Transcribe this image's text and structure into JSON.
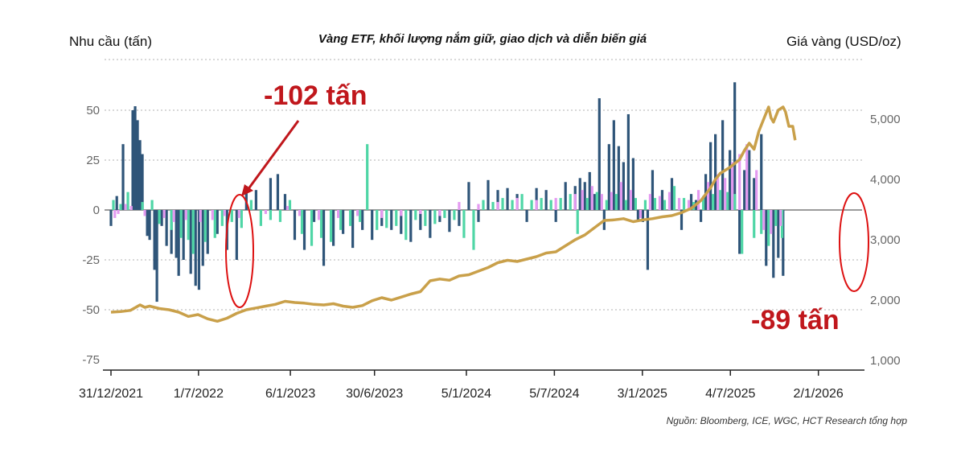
{
  "title": "Vàng ETF, khối lượng nắm giữ, giao dịch và diễn biến giá",
  "left_axis_label": "Nhu cầu (tấn)",
  "right_axis_label": "Giá vàng (USD/oz)",
  "source": "Nguồn: Bloomberg, ICE, WGC, HCT Research tổng hợp",
  "annotations": [
    {
      "text": "-102 tấn",
      "color": "#c0171c"
    },
    {
      "text": "-89 tấn",
      "color": "#c0171c"
    }
  ],
  "colors": {
    "series_dark": "#2f5579",
    "series_green": "#4fd6a6",
    "series_pink": "#e39af0",
    "price_line": "#c9a04a",
    "annotation": "#c0171c",
    "grid": "#cccccc"
  },
  "chart_data": {
    "type": "bar",
    "title": "Vàng ETF, khối lượng nắm giữ, giao dịch và diễn biến giá",
    "ylabel_left": "Nhu cầu (tấn)",
    "ylabel_right": "Giá vàng (USD/oz)",
    "ylim_left": [
      -75,
      62
    ],
    "ylim_right": [
      1000,
      5400
    ],
    "yticks_left": [
      "50",
      "25",
      "0",
      "-25",
      "-50",
      "-75"
    ],
    "yticks_right": [
      "5,000",
      "4,000",
      "3,000",
      "2,000",
      "1,000"
    ],
    "x_tick_labels": [
      "31/12/2021",
      "1/7/2022",
      "6/1/2023",
      "30/6/2023",
      "5/1/2024",
      "5/7/2024",
      "3/1/2025",
      "4/7/2025",
      "2/1/2026"
    ],
    "x_range_days": [
      0,
      1550
    ],
    "grid": "horizontal dotted",
    "legend": "none",
    "series": [
      {
        "kind": "bar",
        "color": "dark",
        "points": [
          [
            0,
            -8
          ],
          [
            12,
            7
          ],
          [
            25,
            33
          ],
          [
            45,
            50
          ],
          [
            50,
            52
          ],
          [
            55,
            45
          ],
          [
            60,
            35
          ],
          [
            65,
            28
          ],
          [
            75,
            -13
          ],
          [
            80,
            -15
          ],
          [
            90,
            -30
          ],
          [
            95,
            -46
          ],
          [
            105,
            -8
          ],
          [
            115,
            -18
          ],
          [
            125,
            -22
          ],
          [
            135,
            -24
          ],
          [
            140,
            -33
          ],
          [
            150,
            -25
          ],
          [
            165,
            -32
          ],
          [
            175,
            -38
          ],
          [
            182,
            -40
          ],
          [
            190,
            -28
          ],
          [
            200,
            -22
          ],
          [
            220,
            -12
          ],
          [
            240,
            -20
          ],
          [
            260,
            -25
          ],
          [
            280,
            12
          ],
          [
            300,
            10
          ],
          [
            330,
            16
          ],
          [
            345,
            18
          ],
          [
            360,
            8
          ],
          [
            380,
            -15
          ],
          [
            400,
            -20
          ],
          [
            420,
            -6
          ],
          [
            440,
            -28
          ],
          [
            460,
            -18
          ],
          [
            480,
            -12
          ],
          [
            500,
            -19
          ],
          [
            520,
            -10
          ],
          [
            540,
            -15
          ],
          [
            560,
            -8
          ],
          [
            580,
            -10
          ],
          [
            600,
            -12
          ],
          [
            620,
            -16
          ],
          [
            640,
            -10
          ],
          [
            660,
            -14
          ],
          [
            680,
            -6
          ],
          [
            700,
            -11
          ],
          [
            720,
            -8
          ],
          [
            740,
            14
          ],
          [
            760,
            -6
          ],
          [
            780,
            15
          ],
          [
            800,
            10
          ],
          [
            820,
            11
          ],
          [
            840,
            8
          ],
          [
            860,
            -6
          ],
          [
            880,
            11
          ],
          [
            900,
            10
          ],
          [
            920,
            -6
          ],
          [
            940,
            14
          ],
          [
            960,
            12
          ],
          [
            970,
            16
          ],
          [
            980,
            14
          ],
          [
            990,
            19
          ],
          [
            1000,
            8
          ],
          [
            1010,
            56
          ],
          [
            1020,
            -10
          ],
          [
            1030,
            33
          ],
          [
            1040,
            45
          ],
          [
            1050,
            32
          ],
          [
            1060,
            24
          ],
          [
            1070,
            48
          ],
          [
            1080,
            26
          ],
          [
            1090,
            -5
          ],
          [
            1100,
            -6
          ],
          [
            1110,
            -30
          ],
          [
            1120,
            20
          ],
          [
            1140,
            10
          ],
          [
            1160,
            16
          ],
          [
            1180,
            -10
          ],
          [
            1200,
            8
          ],
          [
            1210,
            5
          ],
          [
            1220,
            -6
          ],
          [
            1230,
            18
          ],
          [
            1240,
            34
          ],
          [
            1250,
            38
          ],
          [
            1265,
            45
          ],
          [
            1280,
            30
          ],
          [
            1290,
            64
          ],
          [
            1300,
            -22
          ],
          [
            1310,
            20
          ],
          [
            1320,
            30
          ],
          [
            1330,
            16
          ],
          [
            1345,
            38
          ],
          [
            1355,
            -28
          ],
          [
            1370,
            -34
          ],
          [
            1380,
            -24
          ],
          [
            1390,
            -33
          ]
        ]
      },
      {
        "kind": "bar",
        "color": "green",
        "points": [
          [
            5,
            5
          ],
          [
            20,
            3
          ],
          [
            35,
            9
          ],
          [
            65,
            4
          ],
          [
            85,
            5
          ],
          [
            100,
            -7
          ],
          [
            125,
            -10
          ],
          [
            145,
            -14
          ],
          [
            160,
            -15
          ],
          [
            170,
            -22
          ],
          [
            195,
            -16
          ],
          [
            215,
            -14
          ],
          [
            230,
            -8
          ],
          [
            250,
            -6
          ],
          [
            270,
            -9
          ],
          [
            290,
            5
          ],
          [
            310,
            -8
          ],
          [
            330,
            -5
          ],
          [
            350,
            -6
          ],
          [
            370,
            5
          ],
          [
            395,
            -12
          ],
          [
            415,
            -18
          ],
          [
            435,
            -14
          ],
          [
            455,
            -16
          ],
          [
            475,
            -10
          ],
          [
            495,
            -8
          ],
          [
            515,
            -6
          ],
          [
            530,
            33
          ],
          [
            550,
            -10
          ],
          [
            570,
            -9
          ],
          [
            590,
            -8
          ],
          [
            610,
            -15
          ],
          [
            630,
            -5
          ],
          [
            650,
            -8
          ],
          [
            670,
            -7
          ],
          [
            690,
            -4
          ],
          [
            710,
            -5
          ],
          [
            730,
            -14
          ],
          [
            750,
            -20
          ],
          [
            770,
            5
          ],
          [
            790,
            4
          ],
          [
            810,
            6
          ],
          [
            830,
            5
          ],
          [
            850,
            8
          ],
          [
            870,
            5
          ],
          [
            890,
            6
          ],
          [
            910,
            5
          ],
          [
            930,
            6
          ],
          [
            950,
            8
          ],
          [
            965,
            -12
          ],
          [
            985,
            6
          ],
          [
            1005,
            9
          ],
          [
            1025,
            5
          ],
          [
            1045,
            8
          ],
          [
            1065,
            5
          ],
          [
            1085,
            6
          ],
          [
            1105,
            5
          ],
          [
            1125,
            6
          ],
          [
            1145,
            5
          ],
          [
            1165,
            12
          ],
          [
            1185,
            6
          ],
          [
            1205,
            4
          ],
          [
            1225,
            7
          ],
          [
            1245,
            8
          ],
          [
            1260,
            10
          ],
          [
            1275,
            9
          ],
          [
            1290,
            8
          ],
          [
            1305,
            -22
          ],
          [
            1330,
            -14
          ],
          [
            1345,
            -12
          ],
          [
            1360,
            -18
          ],
          [
            1375,
            -8
          ],
          [
            1388,
            -14
          ]
        ]
      },
      {
        "kind": "bar",
        "color": "pink",
        "points": [
          [
            8,
            -4
          ],
          [
            15,
            -2
          ],
          [
            30,
            3
          ],
          [
            42,
            2
          ],
          [
            70,
            -3
          ],
          [
            110,
            -4
          ],
          [
            130,
            -6
          ],
          [
            155,
            -5
          ],
          [
            185,
            -6
          ],
          [
            210,
            -5
          ],
          [
            235,
            -3
          ],
          [
            265,
            -4
          ],
          [
            320,
            -2
          ],
          [
            365,
            2
          ],
          [
            390,
            -3
          ],
          [
            430,
            -5
          ],
          [
            470,
            -4
          ],
          [
            510,
            -3
          ],
          [
            560,
            -4
          ],
          [
            600,
            -3
          ],
          [
            640,
            -2
          ],
          [
            680,
            -3
          ],
          [
            720,
            4
          ],
          [
            760,
            3
          ],
          [
            800,
            4
          ],
          [
            840,
            6
          ],
          [
            880,
            5
          ],
          [
            920,
            6
          ],
          [
            960,
            8
          ],
          [
            975,
            10
          ],
          [
            995,
            12
          ],
          [
            1015,
            8
          ],
          [
            1035,
            9
          ],
          [
            1055,
            14
          ],
          [
            1075,
            10
          ],
          [
            1095,
            -4
          ],
          [
            1115,
            8
          ],
          [
            1135,
            7
          ],
          [
            1155,
            9
          ],
          [
            1175,
            6
          ],
          [
            1195,
            5
          ],
          [
            1215,
            10
          ],
          [
            1235,
            14
          ],
          [
            1255,
            18
          ],
          [
            1270,
            16
          ],
          [
            1285,
            24
          ],
          [
            1300,
            28
          ],
          [
            1315,
            33
          ],
          [
            1335,
            20
          ],
          [
            1350,
            -10
          ],
          [
            1365,
            -12
          ],
          [
            1385,
            -8
          ]
        ]
      },
      {
        "kind": "line",
        "name": "Giá vàng (USD/oz)",
        "axis": "right",
        "points": [
          [
            0,
            1800
          ],
          [
            20,
            1810
          ],
          [
            40,
            1830
          ],
          [
            60,
            1920
          ],
          [
            70,
            1880
          ],
          [
            80,
            1900
          ],
          [
            100,
            1860
          ],
          [
            120,
            1840
          ],
          [
            140,
            1800
          ],
          [
            160,
            1730
          ],
          [
            180,
            1760
          ],
          [
            200,
            1690
          ],
          [
            220,
            1650
          ],
          [
            240,
            1700
          ],
          [
            260,
            1780
          ],
          [
            280,
            1840
          ],
          [
            300,
            1870
          ],
          [
            320,
            1900
          ],
          [
            340,
            1930
          ],
          [
            360,
            1980
          ],
          [
            380,
            1960
          ],
          [
            400,
            1950
          ],
          [
            420,
            1930
          ],
          [
            440,
            1920
          ],
          [
            460,
            1940
          ],
          [
            480,
            1900
          ],
          [
            500,
            1880
          ],
          [
            520,
            1910
          ],
          [
            540,
            1990
          ],
          [
            560,
            2040
          ],
          [
            580,
            2000
          ],
          [
            600,
            2050
          ],
          [
            620,
            2100
          ],
          [
            640,
            2140
          ],
          [
            660,
            2320
          ],
          [
            680,
            2350
          ],
          [
            700,
            2330
          ],
          [
            720,
            2400
          ],
          [
            740,
            2420
          ],
          [
            760,
            2480
          ],
          [
            780,
            2540
          ],
          [
            800,
            2620
          ],
          [
            820,
            2660
          ],
          [
            840,
            2640
          ],
          [
            860,
            2680
          ],
          [
            880,
            2720
          ],
          [
            900,
            2780
          ],
          [
            920,
            2800
          ],
          [
            940,
            2900
          ],
          [
            960,
            3000
          ],
          [
            980,
            3080
          ],
          [
            1000,
            3200
          ],
          [
            1010,
            3260
          ],
          [
            1020,
            3320
          ],
          [
            1040,
            3330
          ],
          [
            1060,
            3350
          ],
          [
            1080,
            3300
          ],
          [
            1100,
            3330
          ],
          [
            1120,
            3350
          ],
          [
            1140,
            3380
          ],
          [
            1160,
            3400
          ],
          [
            1180,
            3450
          ],
          [
            1200,
            3520
          ],
          [
            1220,
            3650
          ],
          [
            1240,
            3860
          ],
          [
            1250,
            4000
          ],
          [
            1260,
            4100
          ],
          [
            1270,
            4150
          ],
          [
            1280,
            4200
          ],
          [
            1300,
            4330
          ],
          [
            1310,
            4480
          ],
          [
            1320,
            4600
          ],
          [
            1330,
            4500
          ],
          [
            1340,
            4800
          ],
          [
            1350,
            5000
          ],
          [
            1360,
            5200
          ],
          [
            1365,
            5020
          ],
          [
            1370,
            4950
          ],
          [
            1380,
            5150
          ],
          [
            1390,
            5200
          ],
          [
            1395,
            5120
          ],
          [
            1402,
            4880
          ],
          [
            1410,
            4880
          ],
          [
            1415,
            4650
          ]
        ]
      }
    ]
  }
}
